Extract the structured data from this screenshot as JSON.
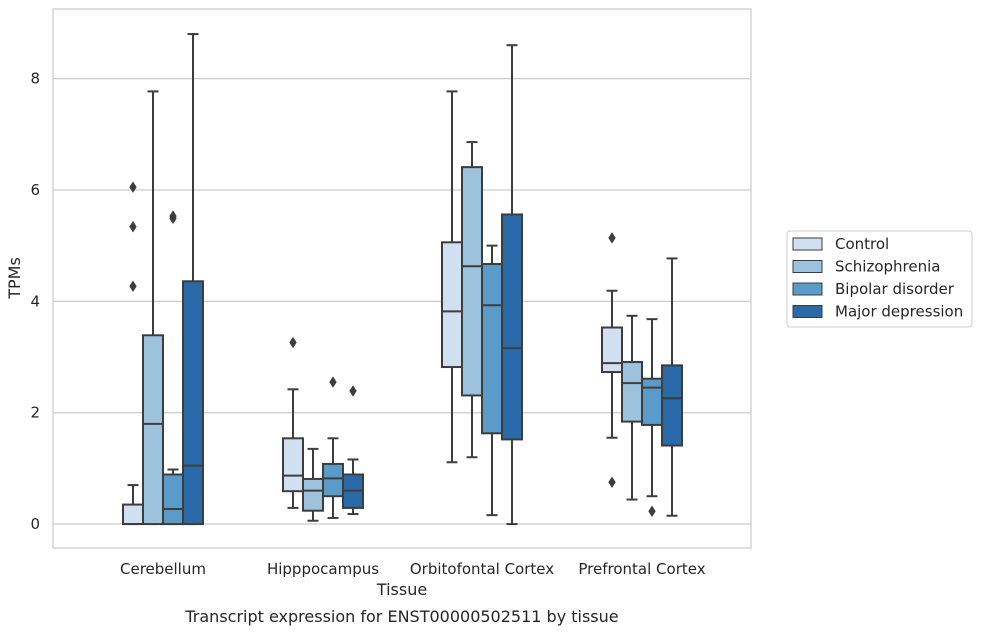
{
  "chart_data": {
    "type": "boxplot",
    "caption": "Transcript expression for ENST00000502511 by tissue",
    "xlabel": "Tissue",
    "ylabel": "TPMs",
    "ylim": [
      -0.43,
      9.25
    ],
    "yticks": [
      0,
      2,
      4,
      6,
      8
    ],
    "grid": "horizontal",
    "legend_position": "right",
    "categories": [
      "Cerebellum",
      "Hipppocampus",
      "Orbitofontal Cortex",
      "Prefrontal Cortex"
    ],
    "series": [
      {
        "name": "Control",
        "color": "#d1e0f1",
        "boxes": [
          {
            "whislo": 0,
            "q1": 0,
            "med": 0,
            "q3": 0.35,
            "whishi": 0.7,
            "fliers": [
              4.27,
              5.34,
              6.05
            ]
          },
          {
            "whislo": 0.29,
            "q1": 0.59,
            "med": 0.87,
            "q3": 1.54,
            "whishi": 2.42,
            "fliers": [
              3.26
            ]
          },
          {
            "whislo": 1.11,
            "q1": 2.82,
            "med": 3.82,
            "q3": 5.06,
            "whishi": 7.77,
            "fliers": []
          },
          {
            "whislo": 1.55,
            "q1": 2.73,
            "med": 2.89,
            "q3": 3.53,
            "whishi": 4.19,
            "fliers": [
              5.14,
              0.75
            ]
          }
        ]
      },
      {
        "name": "Schizophrenia",
        "color": "#9cc2dd",
        "boxes": [
          {
            "whislo": 0,
            "q1": 0,
            "med": 1.8,
            "q3": 3.39,
            "whishi": 7.77,
            "fliers": []
          },
          {
            "whislo": 0.06,
            "q1": 0.24,
            "med": 0.6,
            "q3": 0.81,
            "whishi": 1.35,
            "fliers": []
          },
          {
            "whislo": 1.2,
            "q1": 2.31,
            "med": 4.63,
            "q3": 6.41,
            "whishi": 6.86,
            "fliers": []
          },
          {
            "whislo": 0.44,
            "q1": 1.84,
            "med": 2.53,
            "q3": 2.91,
            "whishi": 3.74,
            "fliers": []
          }
        ]
      },
      {
        "name": "Bipolar disorder",
        "color": "#5a9bc9",
        "boxes": [
          {
            "whislo": 0,
            "q1": 0,
            "med": 0.27,
            "q3": 0.89,
            "whishi": 0.98,
            "fliers": [
              5.49,
              5.53
            ]
          },
          {
            "whislo": 0.11,
            "q1": 0.5,
            "med": 0.82,
            "q3": 1.08,
            "whishi": 1.54,
            "fliers": [
              2.55
            ]
          },
          {
            "whislo": 0.16,
            "q1": 1.63,
            "med": 3.93,
            "q3": 4.67,
            "whishi": 5.0,
            "fliers": []
          },
          {
            "whislo": 0.5,
            "q1": 1.78,
            "med": 2.45,
            "q3": 2.61,
            "whishi": 3.68,
            "fliers": [
              0.23
            ]
          }
        ]
      },
      {
        "name": "Major depression",
        "color": "#2a6aa9",
        "boxes": [
          {
            "whislo": 0,
            "q1": 0,
            "med": 1.05,
            "q3": 4.36,
            "whishi": 8.8,
            "fliers": []
          },
          {
            "whislo": 0.18,
            "q1": 0.29,
            "med": 0.6,
            "q3": 0.89,
            "whishi": 1.16,
            "fliers": [
              2.39
            ]
          },
          {
            "whislo": 0,
            "q1": 1.52,
            "med": 3.16,
            "q3": 5.56,
            "whishi": 8.6,
            "fliers": []
          },
          {
            "whislo": 0.15,
            "q1": 1.41,
            "med": 2.26,
            "q3": 2.85,
            "whishi": 4.77,
            "fliers": []
          }
        ]
      }
    ]
  }
}
